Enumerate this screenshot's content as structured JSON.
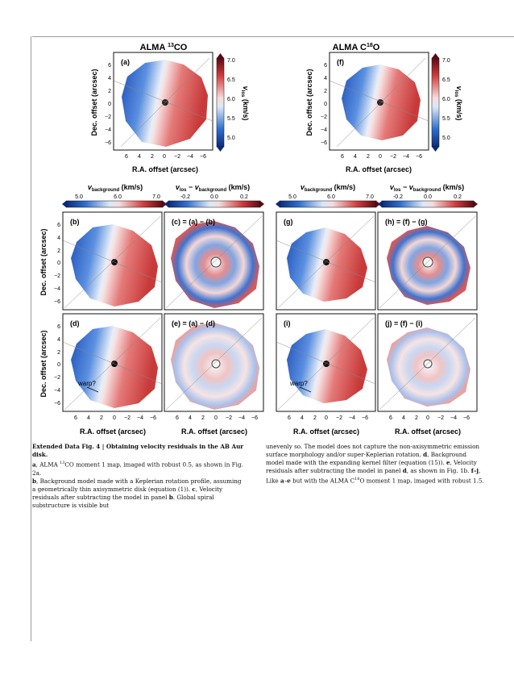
{
  "figure": {
    "top_titles": [
      "ALMA ",
      "13",
      "CO",
      "ALMA C",
      "18",
      "O"
    ],
    "panel_labels": [
      "(a)",
      "(f)",
      "(b)",
      "(c)  =  (a)  −  (b)",
      "(g)",
      "(h)  =  (f)  −  (g)",
      "(d)",
      "(e)  =  (a)  −  (d)",
      "(i)",
      "(j)  =  (f)  −  (i)"
    ],
    "dec_label": "Dec. offset (arcsec)",
    "ra_label": "R.A. offset (arcsec)",
    "vlos_label": "v",
    "vlos_sub": "los",
    "vlos_unit": " (km/s)",
    "vbg_label": "v",
    "vbg_sub": "background",
    "vbg_unit": "  (km/s)",
    "resid_label_a": "v",
    "resid_sub_a": "los",
    "resid_minus": " − ",
    "resid_label_b": "v",
    "resid_sub_b": "background",
    "resid_unit": "  (km/s)",
    "y_ticks": [
      "6",
      "4",
      "2",
      "0",
      "−2",
      "−4",
      "−6"
    ],
    "x_ticks": [
      "6",
      "4",
      "2",
      "0",
      "−2",
      "−4",
      "−6"
    ],
    "cbar_vlos_ticks": [
      "7.0",
      "6.5",
      "6.0",
      "5.5",
      "5.0"
    ],
    "cbar_bg_ticks": [
      "5.0",
      "6.0",
      "7.0"
    ],
    "cbar_res_ticks": [
      "-0.2",
      "0.0",
      "0.2"
    ],
    "warp": "warp?"
  },
  "caption": {
    "heading": "Extended Data Fig. 4 | Obtaining velocity residuals in the AB Aur disk.",
    "a_lbl": "a",
    "a_text_1": ", ALMA ",
    "a_sup": "13",
    "a_text_2": "CO moment 1 map, imaged with robust 0.5, as shown in Fig. 2a.",
    "b_lbl": "b",
    "b_text": ", Background model made with a Keplerian rotation profile, assuming a geometrically thin axisymmetric disk (equation (1)). ",
    "c_lbl": "c",
    "c_text": ", Velocity residuals after subtracting the model in panel ",
    "c_ref": "b",
    "c_text_2": ". Global spiral substructure is visible but",
    "right_1": "unevenly so. The model does not capture the non-axisymmetric emission surface morphology and/or super-Keplerian rotation. ",
    "d_lbl": "d",
    "d_text": ", Background model made with the expanding kernel filter (equation (15)). ",
    "e_lbl": "e",
    "e_text": ", Velocity residuals after subtracting the model in panel ",
    "e_ref": "d",
    "e_text_2": ", as shown in Fig. 1b. ",
    "fj_lbl": "f",
    "fj_dash": "–",
    "fj_lbl2": "j",
    "fj_text": ", Like ",
    "fj_ref1": "a",
    "fj_dash2": "–",
    "fj_ref2": "e",
    "fj_text_2": " but with the ALMA C",
    "fj_sup": "18",
    "fj_text_3": "O moment 1 map, imaged with robust 1.5."
  }
}
